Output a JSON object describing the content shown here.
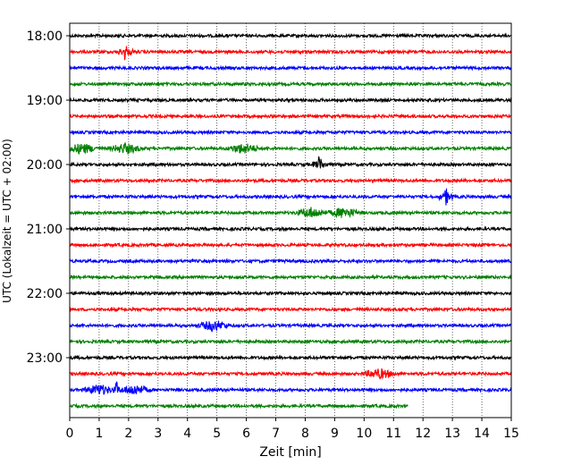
{
  "chart_data": {
    "type": "line",
    "title": "",
    "xlabel": "Zeit  [min]",
    "ylabel": "UTC (Lokalzeit = UTC + 02:00)",
    "xlim": [
      0,
      15
    ],
    "x_ticks": [
      "0",
      "1",
      "2",
      "3",
      "4",
      "5",
      "6",
      "7",
      "8",
      "9",
      "10",
      "11",
      "12",
      "13",
      "14",
      "15"
    ],
    "y_ticks": [
      "18:00",
      "19:00",
      "20:00",
      "21:00",
      "22:00",
      "23:00"
    ],
    "grid": "vertical dotted lines at each minute",
    "trace_interval_minutes": 15,
    "trace_colors": [
      "#000000",
      "#ff0000",
      "#0000ff",
      "#008000"
    ],
    "traces": [
      {
        "start": "18:00",
        "end_min": 15
      },
      {
        "start": "18:15",
        "end_min": 15
      },
      {
        "start": "18:30",
        "end_min": 15
      },
      {
        "start": "18:45",
        "end_min": 15
      },
      {
        "start": "19:00",
        "end_min": 15
      },
      {
        "start": "19:15",
        "end_min": 15
      },
      {
        "start": "19:30",
        "end_min": 15
      },
      {
        "start": "19:45",
        "end_min": 15
      },
      {
        "start": "20:00",
        "end_min": 15
      },
      {
        "start": "20:15",
        "end_min": 15
      },
      {
        "start": "20:30",
        "end_min": 15
      },
      {
        "start": "20:45",
        "end_min": 15
      },
      {
        "start": "21:00",
        "end_min": 15
      },
      {
        "start": "21:15",
        "end_min": 15
      },
      {
        "start": "21:30",
        "end_min": 15
      },
      {
        "start": "21:45",
        "end_min": 15
      },
      {
        "start": "22:00",
        "end_min": 15
      },
      {
        "start": "22:15",
        "end_min": 15
      },
      {
        "start": "22:30",
        "end_min": 15
      },
      {
        "start": "22:45",
        "end_min": 15
      },
      {
        "start": "23:00",
        "end_min": 15
      },
      {
        "start": "23:15",
        "end_min": 15
      },
      {
        "start": "23:30",
        "end_min": 15
      },
      {
        "start": "23:45",
        "end_min": 11.5
      }
    ],
    "events": [
      {
        "trace": "18:15",
        "min": 1.9,
        "amplitude": "spike"
      },
      {
        "trace": "19:45",
        "min": 1.9,
        "amplitude": "burst"
      },
      {
        "trace": "19:45",
        "min": 0.4,
        "amplitude": "burst"
      },
      {
        "trace": "19:45",
        "min": 5.9,
        "amplitude": "burst"
      },
      {
        "trace": "20:00",
        "min": 8.5,
        "amplitude": "spike"
      },
      {
        "trace": "20:30",
        "min": 12.8,
        "amplitude": "spike"
      },
      {
        "trace": "20:45",
        "min": 8.2,
        "amplitude": "burst"
      },
      {
        "trace": "20:45",
        "min": 9.3,
        "amplitude": "burst"
      },
      {
        "trace": "22:30",
        "min": 4.9,
        "amplitude": "burst"
      },
      {
        "trace": "23:15",
        "min": 10.5,
        "amplitude": "burst"
      },
      {
        "trace": "23:30",
        "min": 1.0,
        "amplitude": "burst"
      },
      {
        "trace": "23:30",
        "min": 1.6,
        "amplitude": "spike"
      },
      {
        "trace": "23:30",
        "min": 2.2,
        "amplitude": "burst"
      }
    ]
  }
}
